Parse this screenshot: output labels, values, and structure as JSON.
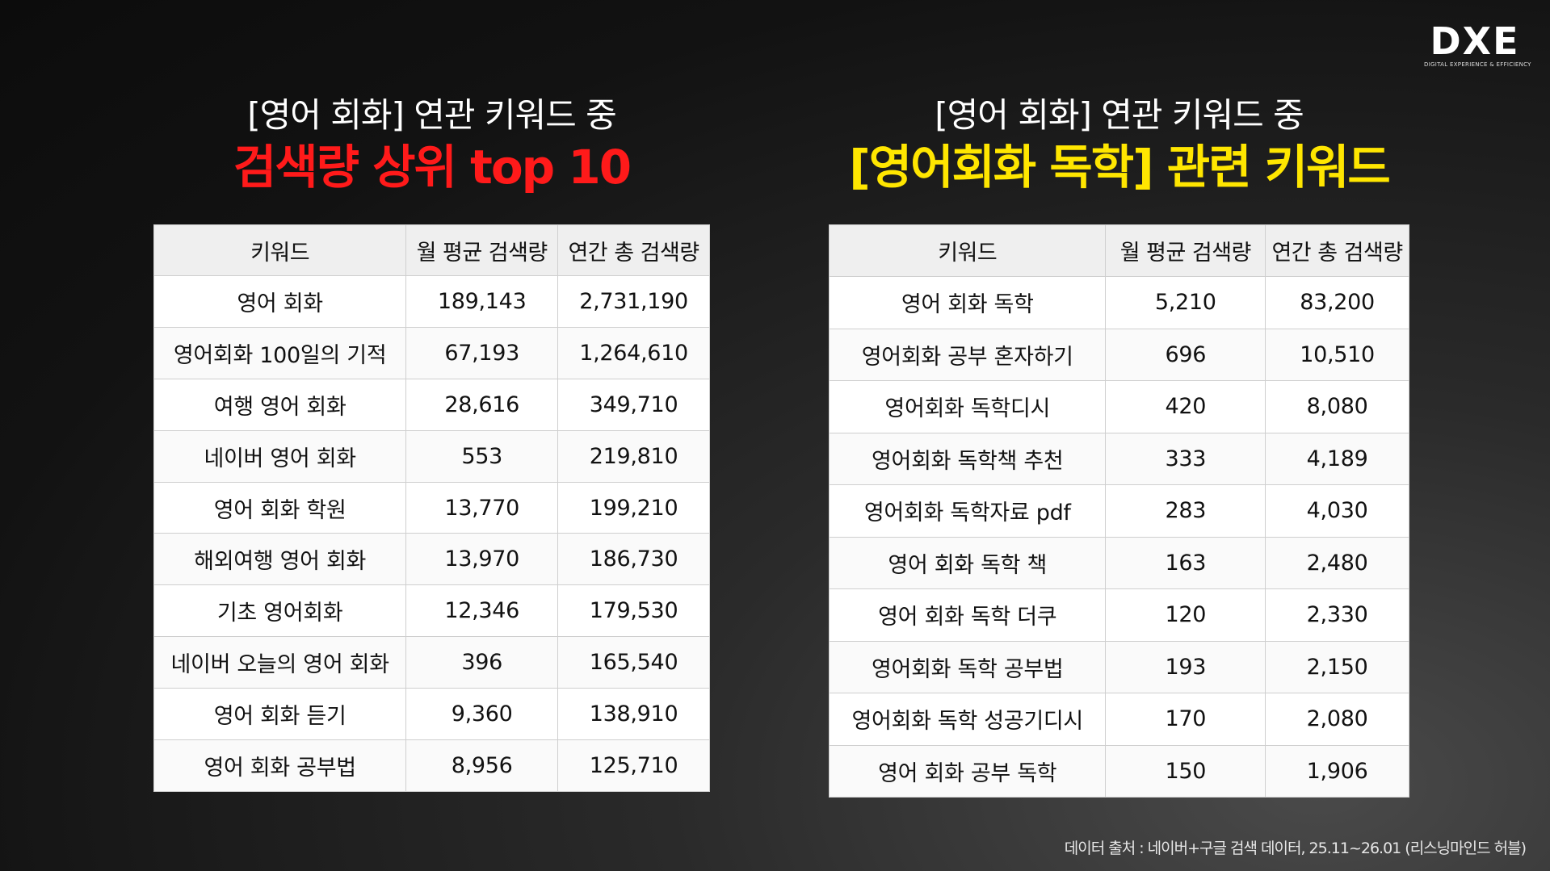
{
  "logo": {
    "mark": "DXE",
    "tagline": "DIGITAL EXPERIENCE & EFFICIENCY"
  },
  "left": {
    "subtitle": "[영어 회화] 연관 키워드 중",
    "headline": "검색량 상위 top 10",
    "headers": [
      "키워드",
      "월 평균 검색량",
      "연간 총 검색량"
    ],
    "rows": [
      [
        "영어 회화",
        "189,143",
        "2,731,190"
      ],
      [
        "영어회화 100일의 기적",
        "67,193",
        "1,264,610"
      ],
      [
        "여행 영어 회화",
        "28,616",
        "349,710"
      ],
      [
        "네이버 영어 회화",
        "553",
        "219,810"
      ],
      [
        "영어 회화 학원",
        "13,770",
        "199,210"
      ],
      [
        "해외여행 영어 회화",
        "13,970",
        "186,730"
      ],
      [
        "기초 영어회화",
        "12,346",
        "179,530"
      ],
      [
        "네이버 오늘의 영어 회화",
        "396",
        "165,540"
      ],
      [
        "영어 회화 듣기",
        "9,360",
        "138,910"
      ],
      [
        "영어 회화 공부법",
        "8,956",
        "125,710"
      ]
    ]
  },
  "right": {
    "subtitle": "[영어 회화] 연관 키워드 중",
    "headline": "[영어회화 독학] 관련 키워드",
    "headers": [
      "키워드",
      "월 평균 검색량",
      "연간 총 검색량"
    ],
    "rows": [
      [
        "영어 회화 독학",
        "5,210",
        "83,200"
      ],
      [
        "영어회화 공부 혼자하기",
        "696",
        "10,510"
      ],
      [
        "영어회화 독학디시",
        "420",
        "8,080"
      ],
      [
        "영어회화 독학책 추천",
        "333",
        "4,189"
      ],
      [
        "영어회화 독학자료 pdf",
        "283",
        "4,030"
      ],
      [
        "영어 회화 독학 책",
        "163",
        "2,480"
      ],
      [
        "영어 회화 독학 더쿠",
        "120",
        "2,330"
      ],
      [
        "영어회화 독학 공부법",
        "193",
        "2,150"
      ],
      [
        "영어회화 독학 성공기디시",
        "170",
        "2,080"
      ],
      [
        "영어 회화 공부 독학",
        "150",
        "1,906"
      ]
    ]
  },
  "footnote": "데이터 출처 : 네이버+구글 검색 데이터, 25.11~26.01 (리스닝마인드 허블)",
  "colors": {
    "left_headline": "#ff1a1a",
    "right_headline": "#ffe600"
  }
}
